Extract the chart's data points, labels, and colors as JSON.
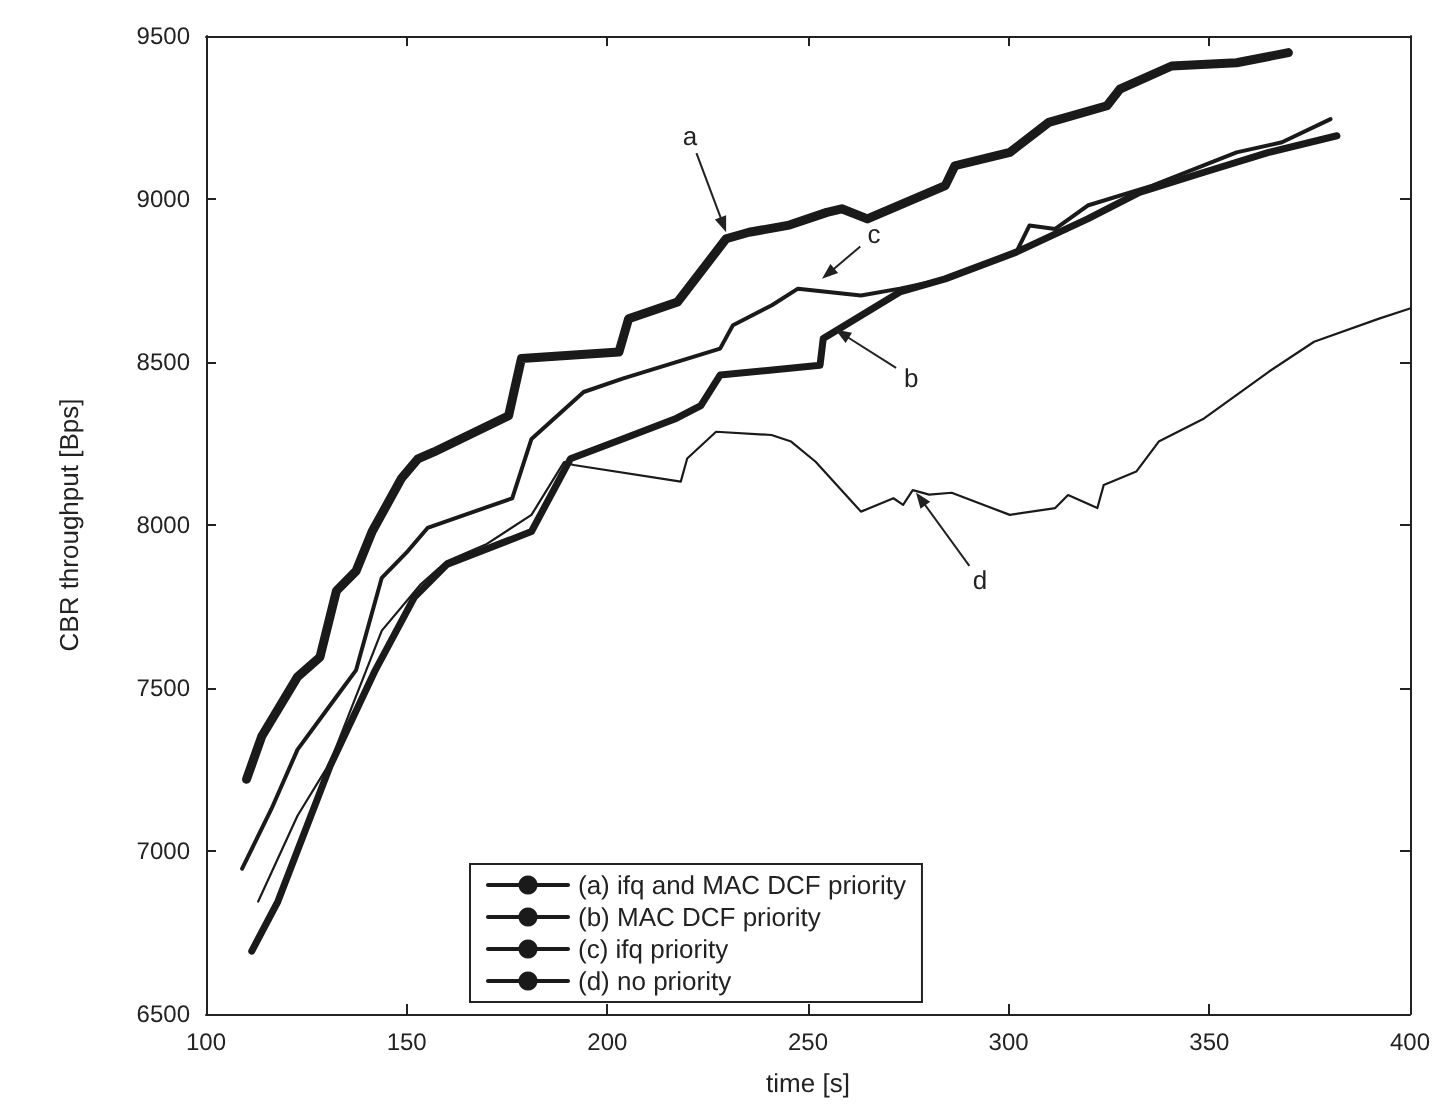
{
  "chart_data": {
    "type": "line",
    "xlabel": "time [s]",
    "ylabel": "CBR throughput [Bps]",
    "xlim": [
      100,
      400
    ],
    "xticks": [
      100,
      150,
      200,
      250,
      300,
      350,
      400
    ],
    "ylim": [
      6500,
      9500
    ],
    "yticks": [
      6500,
      7000,
      7500,
      8000,
      8500,
      9000,
      9500
    ],
    "grid": false,
    "legend": "bottom",
    "marker": "none",
    "line_style": "solid",
    "series": [
      {
        "name": "(a) ifq and MAC DCF priority",
        "color": "#1a1a1a",
        "x": [
          110.1,
          113.9,
          122.8,
          128.4,
          132.5,
          137.4,
          141.4,
          148.7,
          152.8,
          156.8,
          175.4,
          178.6,
          202.9,
          205.3,
          217.5,
          229.6,
          235.3,
          245,
          254.7,
          258.4,
          264.8,
          284.2,
          286.6,
          300.3,
          310,
          324.5,
          327.7,
          340.6,
          356.8,
          369.7
        ],
        "values": [
          7220,
          7352,
          7534,
          7595,
          7798,
          7859,
          7980,
          8143,
          8203,
          8224,
          8335,
          8511,
          8531,
          8633,
          8684,
          8878,
          8898,
          8919,
          8959,
          8970,
          8939,
          9041,
          9102,
          9143,
          9235,
          9286,
          9337,
          9408,
          9418,
          9449
        ]
      },
      {
        "name": "(b) MAC DCF priority",
        "color": "#1a1a1a",
        "x": [
          111.4,
          117.9,
          130.9,
          142.2,
          151.9,
          160,
          181.1,
          190.8,
          203.8,
          216.8,
          223.3,
          228.1,
          253,
          253.8,
          272.9,
          284.2,
          301.9,
          319.7,
          332.6,
          348.7,
          364.8,
          381.8
        ],
        "values": [
          6693,
          6845,
          7260,
          7555,
          7778,
          7879,
          7980,
          8203,
          8264,
          8325,
          8366,
          8460,
          8490,
          8572,
          8715,
          8755,
          8837,
          8939,
          9020,
          9082,
          9143,
          9194
        ]
      },
      {
        "name": "(c) ifq priority",
        "color": "#1a1a1a",
        "x": [
          109,
          116.3,
          122.8,
          132.5,
          137.4,
          143.8,
          150.3,
          155.2,
          176.3,
          181.1,
          194.1,
          203.8,
          228.1,
          231.3,
          241,
          247.5,
          263.2,
          272.9,
          284.2,
          301.9,
          305.2,
          311.6,
          319.7,
          335.8,
          356.8,
          368.1,
          380.2
        ],
        "values": [
          6946,
          7129,
          7311,
          7473,
          7555,
          7838,
          7920,
          7991,
          8082,
          8264,
          8408,
          8449,
          8541,
          8613,
          8674,
          8725,
          8704,
          8725,
          8755,
          8837,
          8919,
          8908,
          8980,
          9041,
          9143,
          9174,
          9245
        ]
      },
      {
        "name": "(d) no priority",
        "color": "#1a1a1a",
        "x": [
          113,
          122.8,
          130.9,
          143.8,
          153.5,
          160,
          169.7,
          181.1,
          189.2,
          191.6,
          218.3,
          219.9,
          227.1,
          240.9,
          245.8,
          251.9,
          263.2,
          271.3,
          273.7,
          276.1,
          280.2,
          285.8,
          300.3,
          311.6,
          314.8,
          322.1,
          323.7,
          331.8,
          337.4,
          348.7,
          364.8,
          376.1,
          392.3,
          400
        ],
        "values": [
          6845,
          7108,
          7271,
          7676,
          7818,
          7889,
          7940,
          8031,
          8193,
          8184,
          8133,
          8204,
          8286,
          8276,
          8256,
          8194,
          8041,
          8082,
          8062,
          8107,
          8093,
          8099,
          8031,
          8052,
          8092,
          8052,
          8123,
          8164,
          8256,
          8327,
          8470,
          8562,
          8633,
          8664
        ]
      }
    ],
    "annotations": [
      {
        "text": "a",
        "x": 229.6,
        "y": 8898
      },
      {
        "text": "c",
        "x": 253.5,
        "y": 8755
      },
      {
        "text": "b",
        "x": 256.8,
        "y": 8600
      },
      {
        "text": "d",
        "x": 276.9,
        "y": 8100
      }
    ]
  }
}
